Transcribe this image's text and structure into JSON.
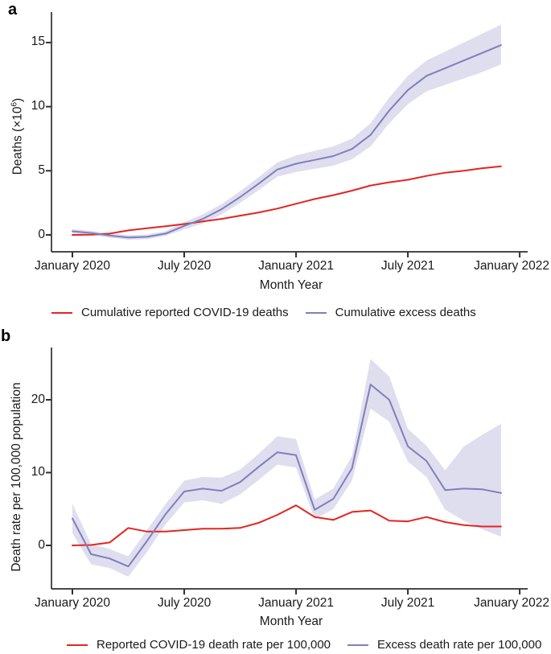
{
  "panel_letters": {
    "a": "a",
    "b": "b"
  },
  "axis_titles": {
    "a_y_pre": "Deaths  (×10",
    "a_y_sup": "6",
    "a_y_post": ")",
    "b_y": "Death rate per 100,000 population",
    "x": "Month Year"
  },
  "colors": {
    "reported": "#e52420",
    "excess": "#807ebd",
    "ci_band": "#dedeee",
    "axis": "#2f2f2f",
    "text": "#1a1a1a"
  },
  "chart_data": [
    {
      "type": "line",
      "panel": "a",
      "xlabel": "Month Year",
      "ylabel": "Deaths (×10^6)",
      "x": [
        "Jan 2020",
        "Feb 2020",
        "Mar 2020",
        "Apr 2020",
        "May 2020",
        "Jun 2020",
        "Jul 2020",
        "Aug 2020",
        "Sep 2020",
        "Oct 2020",
        "Nov 2020",
        "Dec 2020",
        "Jan 2021",
        "Feb 2021",
        "Mar 2021",
        "Apr 2021",
        "May 2021",
        "Jun 2021",
        "Jul 2021",
        "Aug 2021",
        "Sep 2021",
        "Oct 2021",
        "Nov 2021",
        "Dec 2021"
      ],
      "xticks": [
        {
          "month_offset": 0,
          "label": "January 2020"
        },
        {
          "month_offset": 6,
          "label": "July 2020"
        },
        {
          "month_offset": 12,
          "label": "January 2021"
        },
        {
          "month_offset": 18,
          "label": "July 2021"
        },
        {
          "month_offset": 24,
          "label": "January 2022"
        }
      ],
      "yticks": [
        0,
        5,
        10,
        15
      ],
      "ylim": [
        -1.3,
        17.4
      ],
      "grid": false,
      "legend_position": "bottom",
      "series": [
        {
          "key": "reported",
          "name": "Cumulative reported COVID-19 deaths",
          "color": "#e52420",
          "values": [
            0,
            0.01,
            0.1,
            0.35,
            0.52,
            0.68,
            0.85,
            1.05,
            1.25,
            1.5,
            1.75,
            2.05,
            2.43,
            2.8,
            3.1,
            3.45,
            3.85,
            4.1,
            4.3,
            4.6,
            4.85,
            5.0,
            5.2,
            5.35
          ]
        },
        {
          "key": "excess",
          "name": "Cumulative excess deaths",
          "color": "#807ebd",
          "values": [
            0.28,
            0.15,
            -0.05,
            -0.2,
            -0.15,
            0.1,
            0.7,
            1.25,
            2.0,
            2.95,
            4.0,
            5.1,
            5.55,
            5.85,
            6.15,
            6.7,
            7.8,
            9.7,
            11.3,
            12.4,
            13.0,
            13.6,
            14.2,
            14.8
          ],
          "band": {
            "fill": "#dedeee",
            "lo": [
              0.12,
              0.0,
              -0.22,
              -0.38,
              -0.33,
              -0.08,
              0.42,
              0.9,
              1.6,
              2.5,
              3.5,
              4.55,
              4.9,
              5.15,
              5.4,
              5.9,
              6.9,
              8.7,
              10.2,
              11.2,
              11.7,
              12.2,
              12.7,
              13.3
            ],
            "hi": [
              0.45,
              0.32,
              0.12,
              -0.02,
              0.03,
              0.3,
              1.0,
              1.6,
              2.4,
              3.4,
              4.5,
              5.65,
              6.2,
              6.55,
              6.9,
              7.5,
              8.7,
              10.7,
              12.4,
              13.6,
              14.3,
              15.0,
              15.7,
              16.4
            ]
          }
        }
      ]
    },
    {
      "type": "line",
      "panel": "b",
      "xlabel": "Month Year",
      "ylabel": "Death rate per 100,000 population",
      "x": [
        "Jan 2020",
        "Feb 2020",
        "Mar 2020",
        "Apr 2020",
        "May 2020",
        "Jun 2020",
        "Jul 2020",
        "Aug 2020",
        "Sep 2020",
        "Oct 2020",
        "Nov 2020",
        "Dec 2020",
        "Jan 2021",
        "Feb 2021",
        "Mar 2021",
        "Apr 2021",
        "May 2021",
        "Jun 2021",
        "Jul 2021",
        "Aug 2021",
        "Sep 2021",
        "Oct 2021",
        "Nov 2021",
        "Dec 2021"
      ],
      "xticks": [
        {
          "month_offset": 0,
          "label": "January 2020"
        },
        {
          "month_offset": 6,
          "label": "July 2020"
        },
        {
          "month_offset": 12,
          "label": "January 2021"
        },
        {
          "month_offset": 18,
          "label": "July 2021"
        },
        {
          "month_offset": 24,
          "label": "January 2022"
        }
      ],
      "yticks": [
        0,
        10,
        20
      ],
      "ylim": [
        -6.0,
        27.2
      ],
      "grid": false,
      "legend_position": "bottom",
      "series": [
        {
          "key": "reported",
          "name": "Reported COVID-19 death rate per 100,000",
          "color": "#e52420",
          "values": [
            0.0,
            0.05,
            0.4,
            2.4,
            1.9,
            1.9,
            2.1,
            2.3,
            2.3,
            2.4,
            3.1,
            4.2,
            5.5,
            3.9,
            3.5,
            4.6,
            4.8,
            3.4,
            3.3,
            3.9,
            3.2,
            2.8,
            2.6,
            2.6
          ]
        },
        {
          "key": "excess",
          "name": "Excess death rate per 100,000",
          "color": "#807ebd",
          "values": [
            3.7,
            -1.2,
            -1.8,
            -2.9,
            0.6,
            4.3,
            7.4,
            7.8,
            7.5,
            8.7,
            10.8,
            12.8,
            12.4,
            4.9,
            6.4,
            10.6,
            22.1,
            20.0,
            13.6,
            11.6,
            7.6,
            7.8,
            7.7,
            7.2
          ],
          "band": {
            "fill": "#dedeee",
            "lo": [
              1.7,
              -2.6,
              -3.1,
              -4.3,
              -0.9,
              2.9,
              5.9,
              6.2,
              5.7,
              7.0,
              9.0,
              11.1,
              10.7,
              3.6,
              5.0,
              8.9,
              18.8,
              17.0,
              11.5,
              9.4,
              4.9,
              3.4,
              2.2,
              1.2
            ],
            "hi": [
              5.7,
              0.2,
              -0.5,
              -1.5,
              2.1,
              5.7,
              8.9,
              9.4,
              9.3,
              10.4,
              12.6,
              15.0,
              14.6,
              6.3,
              7.8,
              12.3,
              25.6,
              23.2,
              16.0,
              13.7,
              10.3,
              13.6,
              15.2,
              16.7
            ]
          }
        }
      ]
    }
  ]
}
